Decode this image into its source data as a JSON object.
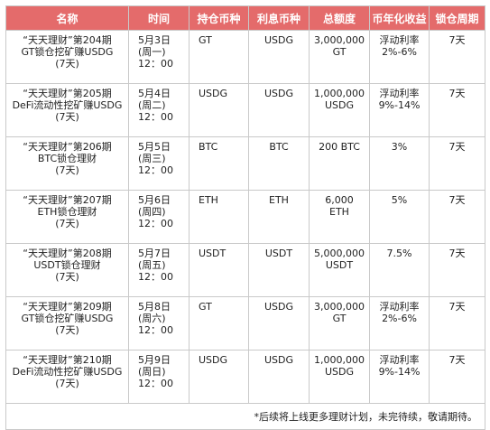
{
  "headers": [
    "名称",
    "时间",
    "持仓币种",
    "利息币种",
    "总额度",
    "币年化收益",
    "锁仓周期"
  ],
  "rows": [
    {
      "name": "“天天理财”第204期\nGT锁仓挖矿赚USDG\n(7天)",
      "time": "5月3日\n(周一)\n12：00",
      "hold": "GT",
      "interest": "USDG",
      "total": "3,000,000\nGT",
      "yield": "浮动利率\n2%-6%",
      "lock": "7天"
    },
    {
      "name": "“天天理财”第205期\nDeFi流动性挖矿赚USDG\n(7天)",
      "time": "5月4日\n(周二)\n12：00",
      "hold": "USDG",
      "interest": "USDG",
      "total": "1,000,000\nUSDG",
      "yield": "浮动利率\n9%-14%",
      "lock": "7天"
    },
    {
      "name": "“天天理财”第206期\nBTC锁仓理财\n(7天)",
      "time": "5月5日\n(周三)\n12：00",
      "hold": "BTC",
      "interest": "BTC",
      "total": "200 BTC",
      "yield": "3%",
      "lock": "7天"
    },
    {
      "name": "“天天理财”第207期\nETH锁仓理财\n(7天)",
      "time": "5月6日\n(周四)\n12：00",
      "hold": "ETH",
      "interest": "ETH",
      "total": "6,000\nETH",
      "yield": "5%",
      "lock": "7天"
    },
    {
      "name": "“天天理财”第208期\nUSDT锁仓理财\n(7天)",
      "time": "5月7日\n(周五)\n12：00",
      "hold": "USDT",
      "interest": "USDT",
      "total": "5,000,000\nUSDT",
      "yield": "7.5%",
      "lock": "7天"
    },
    {
      "name": "“天天理财”第209期\nGT锁仓挖矿赚USDG\n(7天)",
      "time": "5月8日\n(周六)\n12：00",
      "hold": "GT",
      "interest": "USDG",
      "total": "3,000,000\nGT",
      "yield": "浮动利率\n2%-6%",
      "lock": "7天"
    },
    {
      "name": "“天天理财”第210期\nDeFi流动性挖矿赚USDG\n(7天)",
      "time": "5月9日\n(周日)\n12：00",
      "hold": "USDG",
      "interest": "USDG",
      "total": "1,000,000\nUSDG",
      "yield": "浮动利率\n9%-14%",
      "lock": "7天"
    }
  ],
  "footnote": "*后续将上线更多理财计划，未完待续，敬请期待。",
  "colors": {
    "header_bg": "#e46b6b",
    "header_text": "#ffffff",
    "border": "#c9c9c9"
  }
}
